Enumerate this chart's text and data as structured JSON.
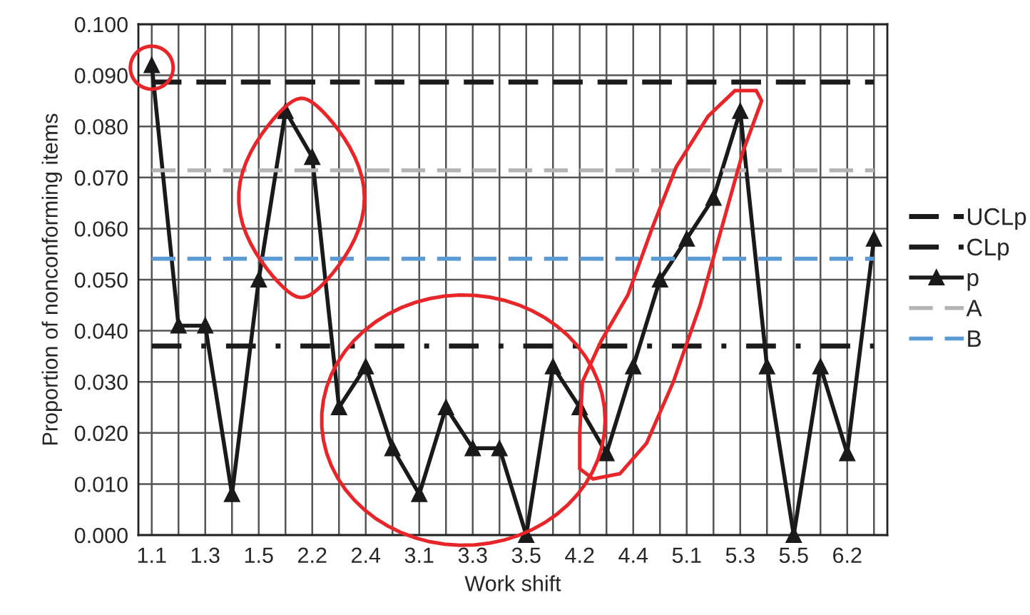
{
  "chart_data": {
    "type": "line",
    "xlabel": "Work shift",
    "ylabel": "Proportion of nonconforming items",
    "categories": [
      "1.1",
      null,
      "1.3",
      null,
      "1.5",
      null,
      "2.2",
      null,
      "2.4",
      null,
      "3.1",
      null,
      "3.3",
      null,
      "3.5",
      null,
      "4.2",
      null,
      "4.4",
      null,
      "5.1",
      null,
      "5.3",
      null,
      "5.5",
      null,
      "6.2",
      null
    ],
    "series": [
      {
        "name": "UCLp",
        "color": "#1a1a1a",
        "line_style": "dashed",
        "marker": "none",
        "values": [
          0.0887,
          0.0887,
          0.0887,
          0.0887,
          0.0887,
          0.0887,
          0.0887,
          0.0887,
          0.0887,
          0.0887,
          0.0887,
          0.0887,
          0.0887,
          0.0887,
          0.0887,
          0.0887,
          0.0887,
          0.0887,
          0.0887,
          0.0887,
          0.0887,
          0.0887,
          0.0887,
          0.0887,
          0.0887,
          0.0887,
          0.0887,
          0.0887
        ]
      },
      {
        "name": "CLp",
        "color": "#1a1a1a",
        "line_style": "dashdot",
        "marker": "none",
        "values": [
          0.037,
          0.037,
          0.037,
          0.037,
          0.037,
          0.037,
          0.037,
          0.037,
          0.037,
          0.037,
          0.037,
          0.037,
          0.037,
          0.037,
          0.037,
          0.037,
          0.037,
          0.037,
          0.037,
          0.037,
          0.037,
          0.037,
          0.037,
          0.037,
          0.037,
          0.037,
          0.037,
          0.037
        ]
      },
      {
        "name": "p",
        "color": "#1a1a1a",
        "line_style": "solid",
        "marker": "triangle",
        "values": [
          0.092,
          0.041,
          0.041,
          0.008,
          0.05,
          0.083,
          0.074,
          0.025,
          0.033,
          0.017,
          0.008,
          0.025,
          0.017,
          0.017,
          0.0,
          0.033,
          0.025,
          0.016,
          0.033,
          0.05,
          0.058,
          0.066,
          0.083,
          0.033,
          0.0,
          0.033,
          0.016,
          0.058
        ]
      },
      {
        "name": "A",
        "color": "#b4b4b4",
        "line_style": "dashed",
        "marker": "none",
        "values": [
          0.0714,
          0.0714,
          0.0714,
          0.0714,
          0.0714,
          0.0714,
          0.0714,
          0.0714,
          0.0714,
          0.0714,
          0.0714,
          0.0714,
          0.0714,
          0.0714,
          0.0714,
          0.0714,
          0.0714,
          0.0714,
          0.0714,
          0.0714,
          0.0714,
          0.0714,
          0.0714,
          0.0714,
          0.0714,
          0.0714,
          0.0714,
          0.0714
        ]
      },
      {
        "name": "B",
        "color": "#5b9bd5",
        "line_style": "dashed",
        "marker": "none",
        "values": [
          0.0541,
          0.0541,
          0.0541,
          0.0541,
          0.0541,
          0.0541,
          0.0541,
          0.0541,
          0.0541,
          0.0541,
          0.0541,
          0.0541,
          0.0541,
          0.0541,
          0.0541,
          0.0541,
          0.0541,
          0.0541,
          0.0541,
          0.0541,
          0.0541,
          0.0541,
          0.0541,
          0.0541,
          0.0541,
          0.0541,
          0.0541,
          0.0541
        ]
      }
    ],
    "ylim": [
      0,
      0.1
    ],
    "yticks": [
      {
        "value": 0,
        "label": "0.000"
      },
      {
        "value": 0.01,
        "label": "0.010"
      },
      {
        "value": 0.02,
        "label": "0.020"
      },
      {
        "value": 0.03,
        "label": "0.030"
      },
      {
        "value": 0.04,
        "label": "0.040"
      },
      {
        "value": 0.05,
        "label": "0.050"
      },
      {
        "value": 0.06,
        "label": "0.060"
      },
      {
        "value": 0.07,
        "label": "0.070"
      },
      {
        "value": 0.08,
        "label": "0.080"
      },
      {
        "value": 0.09,
        "label": "0.090"
      },
      {
        "value": 0.1,
        "label": "0.100"
      }
    ],
    "grid": true,
    "legend": "right"
  }
}
